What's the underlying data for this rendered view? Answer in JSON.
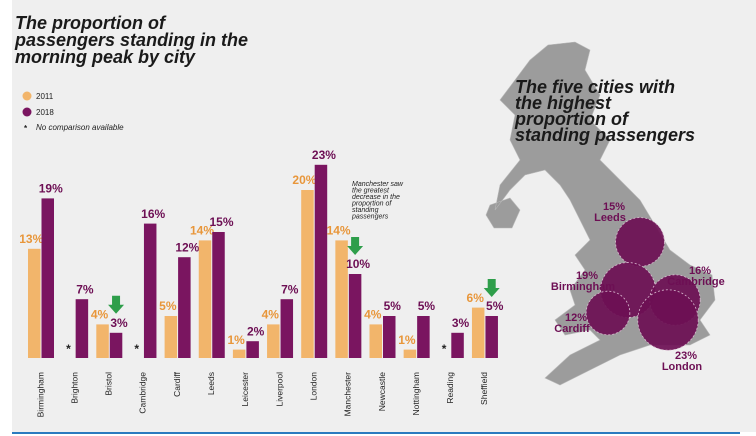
{
  "chart_data": [
    {
      "type": "bar",
      "title": [
        "The proportion of",
        "passengers standing in the",
        "morning peak by city"
      ],
      "categories": [
        "Birmingham",
        "Brighton",
        "Bristol",
        "Cambridge",
        "Cardiff",
        "Leeds",
        "Leicester",
        "Liverpool",
        "London",
        "Manchester",
        "Newcastle",
        "Nottingham",
        "Reading",
        "Sheffield"
      ],
      "series": [
        {
          "name": "2011",
          "color": "#f2b56b",
          "values": [
            13,
            null,
            4,
            null,
            5,
            14,
            1,
            4,
            20,
            14,
            4,
            1,
            null,
            6
          ],
          "value_labels": [
            "13%",
            null,
            "4%",
            null,
            "5%",
            "14%",
            "1%",
            "4%",
            "20%",
            "14%",
            "4%",
            "1%",
            null,
            "6%"
          ]
        },
        {
          "name": "2018",
          "color": "#7a1560",
          "values": [
            19,
            7,
            3,
            16,
            12,
            15,
            2,
            7,
            23,
            10,
            5,
            5,
            3,
            5
          ],
          "value_labels": [
            "19%",
            "7%",
            "3%",
            "16%",
            "12%",
            "15%",
            "2%",
            "7%",
            "23%",
            "10%",
            "5%",
            "5%",
            "3%",
            "5%"
          ]
        }
      ],
      "no_comparison": {
        "symbol": "*",
        "label": "No comparison available"
      },
      "annotation": [
        "Manchester saw",
        "the greatest",
        "decrease in the",
        "proportion of",
        "standing",
        "passengers"
      ]
    },
    {
      "type": "map",
      "title": [
        "The five cities with",
        "the highest",
        "proportion of",
        "standing passengers"
      ],
      "color": "#6d0f54",
      "cities": [
        {
          "name": "Leeds",
          "value": 15,
          "label": "15%"
        },
        {
          "name": "Birmingham",
          "value": 19,
          "label": "19%"
        },
        {
          "name": "Cambridge",
          "value": 16,
          "label": "16%"
        },
        {
          "name": "Cardiff",
          "value": 12,
          "label": "12%"
        },
        {
          "name": "London",
          "value": 23,
          "label": "23%"
        }
      ]
    }
  ]
}
